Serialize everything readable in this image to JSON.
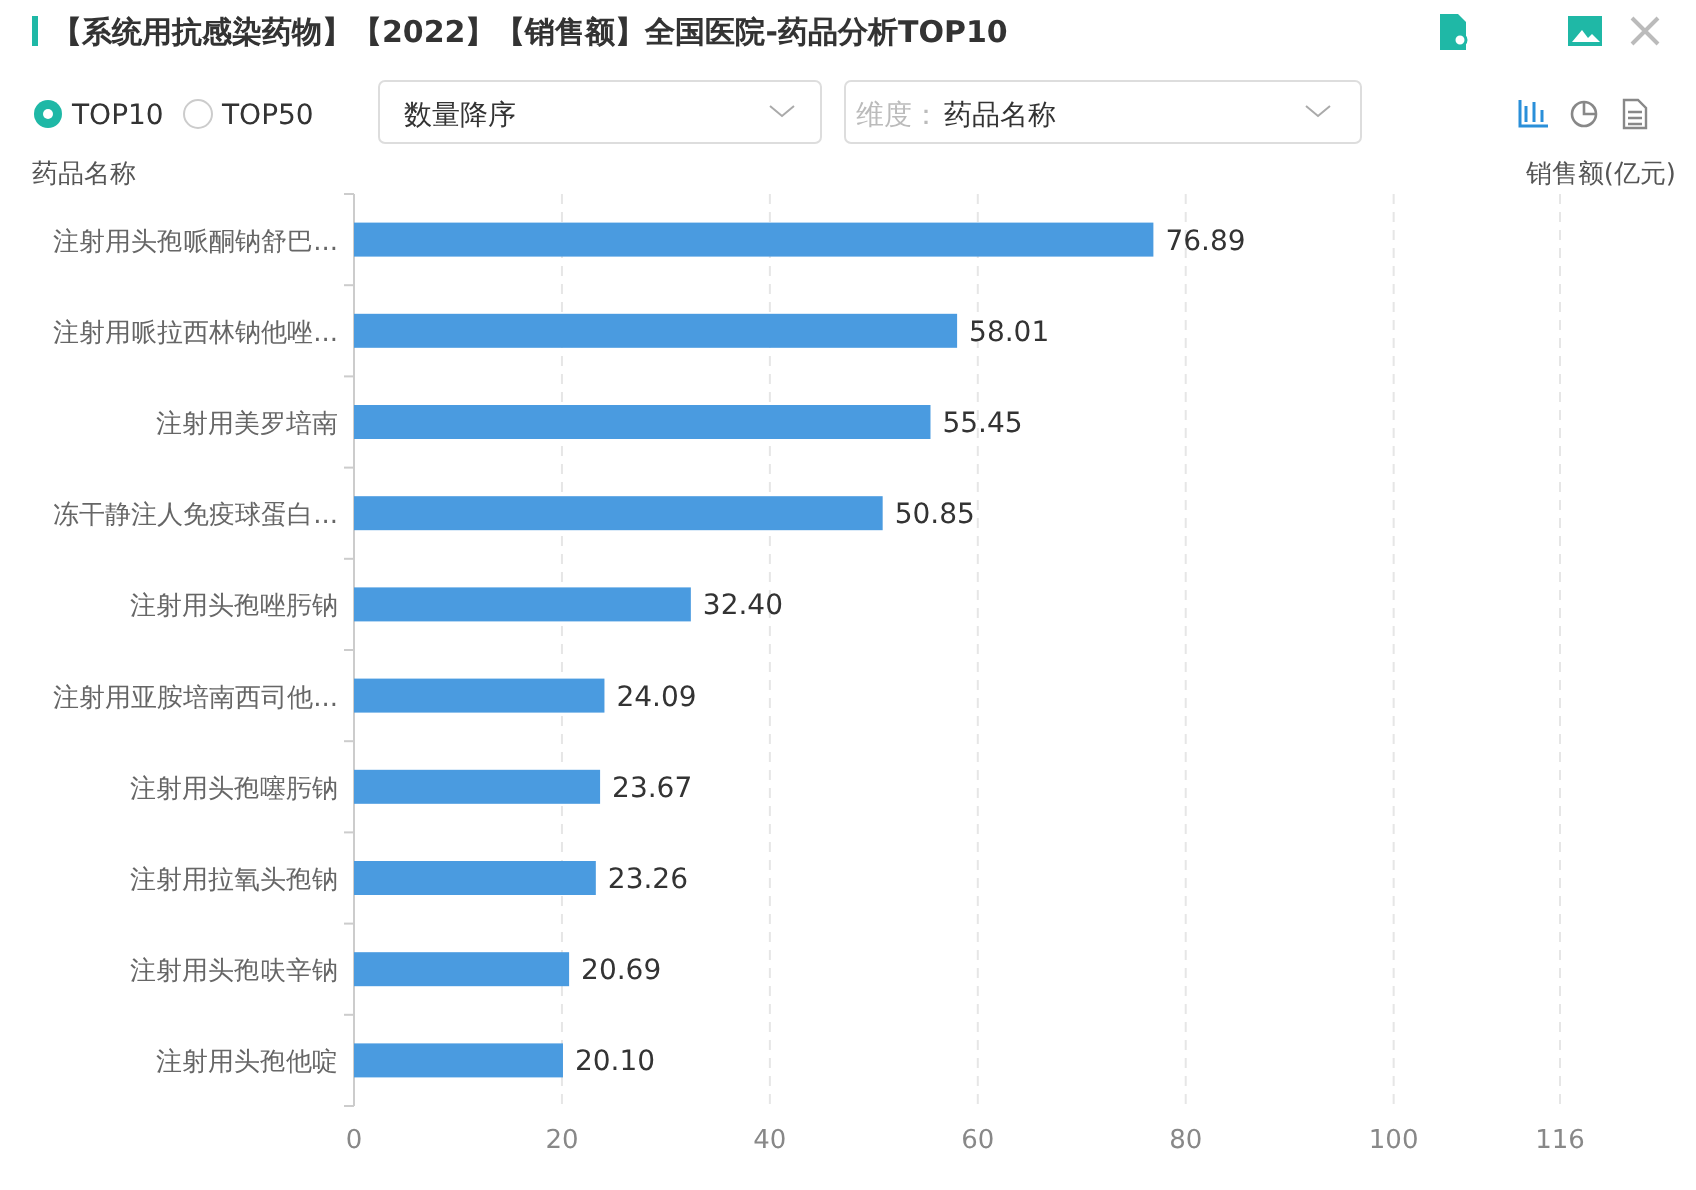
{
  "chart_data": {
    "type": "bar",
    "orientation": "horizontal",
    "title": "【系统用抗感染药物】【2022】【销售额】全国医院-药品分析TOP10",
    "categories": [
      "注射用头孢哌酮钠舒巴...",
      "注射用哌拉西林钠他唑...",
      "注射用美罗培南",
      "冻干静注人免疫球蛋白...",
      "注射用头孢唑肟钠",
      "注射用亚胺培南西司他...",
      "注射用头孢噻肟钠",
      "注射用拉氧头孢钠",
      "注射用头孢呋辛钠",
      "注射用头孢他啶"
    ],
    "values": [
      76.89,
      58.01,
      55.45,
      50.85,
      32.4,
      24.09,
      23.67,
      23.26,
      20.69,
      20.1
    ],
    "value_labels": [
      "76.89",
      "58.01",
      "55.45",
      "50.85",
      "32.40",
      "24.09",
      "23.67",
      "23.26",
      "20.69",
      "20.10"
    ],
    "color": "#4a9be0",
    "xlim": [
      0,
      116
    ],
    "xticks": [
      0,
      20,
      40,
      60,
      80,
      100,
      116
    ],
    "ylabel": "药品名称",
    "xlabel": "销售额(亿元)",
    "grid": "x",
    "annotations": [
      "TOP10",
      "TOP50",
      "数量降序",
      "维度：",
      "药品名称"
    ]
  }
}
